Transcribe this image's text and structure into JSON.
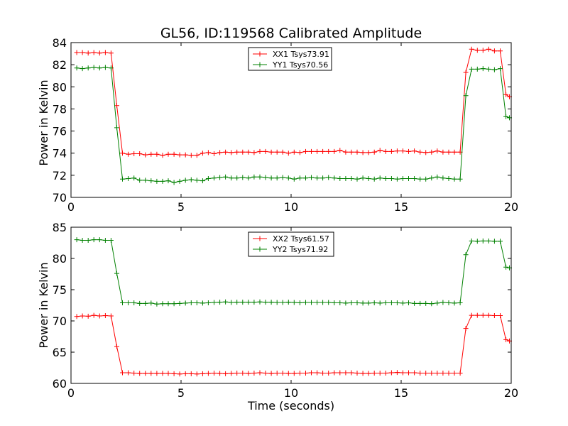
{
  "chart_data": [
    {
      "type": "line",
      "title": "GL56, ID:119568 Calibrated Amplitude",
      "xlabel": "",
      "ylabel": "Power in Kelvin",
      "xlim": [
        0,
        20
      ],
      "ylim": [
        70,
        84
      ],
      "xticks": [
        0,
        5,
        10,
        15,
        20
      ],
      "yticks": [
        70,
        72,
        74,
        76,
        78,
        80,
        82,
        84
      ],
      "grid": false,
      "legend_position": "upper center",
      "x": [
        0.26,
        0.52,
        0.78,
        1.04,
        1.3,
        1.56,
        1.82,
        2.08,
        2.34,
        2.6,
        2.86,
        3.12,
        3.38,
        3.64,
        3.9,
        4.16,
        4.42,
        4.68,
        4.94,
        5.2,
        5.46,
        5.72,
        5.98,
        6.24,
        6.5,
        6.76,
        7.02,
        7.28,
        7.54,
        7.8,
        8.06,
        8.32,
        8.58,
        8.84,
        9.1,
        9.36,
        9.62,
        9.88,
        10.14,
        10.4,
        10.66,
        10.92,
        11.18,
        11.44,
        11.7,
        11.96,
        12.22,
        12.48,
        12.74,
        13.0,
        13.26,
        13.52,
        13.78,
        14.04,
        14.3,
        14.56,
        14.82,
        15.08,
        15.34,
        15.6,
        15.86,
        16.12,
        16.38,
        16.64,
        16.9,
        17.16,
        17.42,
        17.68,
        17.94,
        18.2,
        18.46,
        18.72,
        18.98,
        19.24,
        19.5,
        19.76,
        19.92
      ],
      "series": [
        {
          "name": "XX1 Tsys73.91",
          "color": "#ff0000",
          "values": [
            83.1,
            83.1,
            83.05,
            83.1,
            83.05,
            83.1,
            83.05,
            78.3,
            74.0,
            73.9,
            73.95,
            73.95,
            73.85,
            73.9,
            73.9,
            73.8,
            73.9,
            73.9,
            73.85,
            73.85,
            73.8,
            73.8,
            74.0,
            74.05,
            73.95,
            74.05,
            74.1,
            74.05,
            74.1,
            74.1,
            74.1,
            74.05,
            74.15,
            74.15,
            74.1,
            74.1,
            74.1,
            74.0,
            74.1,
            74.05,
            74.15,
            74.15,
            74.15,
            74.15,
            74.15,
            74.15,
            74.25,
            74.1,
            74.1,
            74.1,
            74.05,
            74.05,
            74.1,
            74.25,
            74.15,
            74.15,
            74.2,
            74.2,
            74.15,
            74.2,
            74.1,
            74.05,
            74.1,
            74.2,
            74.1,
            74.1,
            74.1,
            74.1,
            81.3,
            83.4,
            83.3,
            83.3,
            83.4,
            83.25,
            83.25,
            79.3,
            79.1
          ]
        },
        {
          "name": "YY1 Tsys70.56",
          "color": "#008000",
          "values": [
            81.7,
            81.65,
            81.7,
            81.75,
            81.7,
            81.75,
            81.7,
            76.3,
            71.65,
            71.7,
            71.75,
            71.55,
            71.55,
            71.5,
            71.45,
            71.45,
            71.5,
            71.35,
            71.45,
            71.55,
            71.6,
            71.55,
            71.5,
            71.7,
            71.75,
            71.8,
            71.85,
            71.75,
            71.75,
            71.8,
            71.75,
            71.85,
            71.85,
            71.8,
            71.75,
            71.75,
            71.8,
            71.75,
            71.65,
            71.75,
            71.75,
            71.8,
            71.75,
            71.75,
            71.8,
            71.75,
            71.7,
            71.7,
            71.7,
            71.65,
            71.75,
            71.7,
            71.65,
            71.75,
            71.7,
            71.7,
            71.65,
            71.7,
            71.7,
            71.7,
            71.65,
            71.65,
            71.75,
            71.85,
            71.75,
            71.7,
            71.65,
            71.65,
            79.2,
            81.6,
            81.6,
            81.65,
            81.6,
            81.55,
            81.65,
            77.3,
            77.2
          ]
        }
      ]
    },
    {
      "type": "line",
      "title": "",
      "xlabel": "Time (seconds)",
      "ylabel": "Power in Kelvin",
      "xlim": [
        0,
        20
      ],
      "ylim": [
        60,
        85
      ],
      "xticks": [
        0,
        5,
        10,
        15,
        20
      ],
      "yticks": [
        60,
        65,
        70,
        75,
        80,
        85
      ],
      "grid": false,
      "legend_position": "upper center",
      "x": [
        0.26,
        0.52,
        0.78,
        1.04,
        1.3,
        1.56,
        1.82,
        2.08,
        2.34,
        2.6,
        2.86,
        3.12,
        3.38,
        3.64,
        3.9,
        4.16,
        4.42,
        4.68,
        4.94,
        5.2,
        5.46,
        5.72,
        5.98,
        6.24,
        6.5,
        6.76,
        7.02,
        7.28,
        7.54,
        7.8,
        8.06,
        8.32,
        8.58,
        8.84,
        9.1,
        9.36,
        9.62,
        9.88,
        10.14,
        10.4,
        10.66,
        10.92,
        11.18,
        11.44,
        11.7,
        11.96,
        12.22,
        12.48,
        12.74,
        13.0,
        13.26,
        13.52,
        13.78,
        14.04,
        14.3,
        14.56,
        14.82,
        15.08,
        15.34,
        15.6,
        15.86,
        16.12,
        16.38,
        16.64,
        16.9,
        17.16,
        17.42,
        17.68,
        17.94,
        18.2,
        18.46,
        18.72,
        18.98,
        19.24,
        19.5,
        19.76,
        19.92
      ],
      "series": [
        {
          "name": "XX2 Tsys61.57",
          "color": "#ff0000",
          "values": [
            70.7,
            70.8,
            70.75,
            70.9,
            70.8,
            70.85,
            70.8,
            65.9,
            61.7,
            61.7,
            61.65,
            61.6,
            61.6,
            61.6,
            61.6,
            61.6,
            61.6,
            61.55,
            61.5,
            61.55,
            61.55,
            61.5,
            61.55,
            61.6,
            61.65,
            61.6,
            61.55,
            61.6,
            61.65,
            61.65,
            61.6,
            61.65,
            61.7,
            61.65,
            61.6,
            61.65,
            61.65,
            61.6,
            61.6,
            61.65,
            61.65,
            61.7,
            61.7,
            61.65,
            61.65,
            61.7,
            61.7,
            61.7,
            61.7,
            61.65,
            61.6,
            61.6,
            61.65,
            61.65,
            61.65,
            61.7,
            61.75,
            61.7,
            61.7,
            61.7,
            61.65,
            61.65,
            61.65,
            61.65,
            61.65,
            61.65,
            61.65,
            61.65,
            68.8,
            70.9,
            70.9,
            70.9,
            70.9,
            70.85,
            70.85,
            67.0,
            66.8
          ]
        },
        {
          "name": "YY2 Tsys71.92",
          "color": "#008000",
          "values": [
            83.0,
            82.9,
            82.9,
            83.0,
            83.0,
            82.9,
            82.9,
            77.6,
            72.9,
            72.9,
            72.9,
            72.8,
            72.8,
            72.85,
            72.7,
            72.75,
            72.75,
            72.75,
            72.8,
            72.85,
            72.9,
            72.9,
            72.85,
            72.9,
            72.95,
            73.0,
            73.05,
            72.95,
            73.0,
            73.0,
            73.0,
            73.0,
            73.05,
            73.0,
            73.0,
            72.95,
            72.95,
            73.0,
            72.95,
            72.9,
            72.95,
            72.95,
            72.95,
            72.95,
            72.95,
            72.9,
            72.9,
            72.85,
            72.9,
            72.9,
            72.85,
            72.85,
            72.9,
            72.85,
            72.9,
            72.9,
            72.9,
            72.85,
            72.9,
            72.8,
            72.8,
            72.8,
            72.75,
            72.85,
            72.95,
            72.9,
            72.85,
            72.9,
            80.6,
            82.8,
            82.75,
            82.8,
            82.8,
            82.75,
            82.75,
            78.6,
            78.5
          ]
        }
      ]
    }
  ]
}
